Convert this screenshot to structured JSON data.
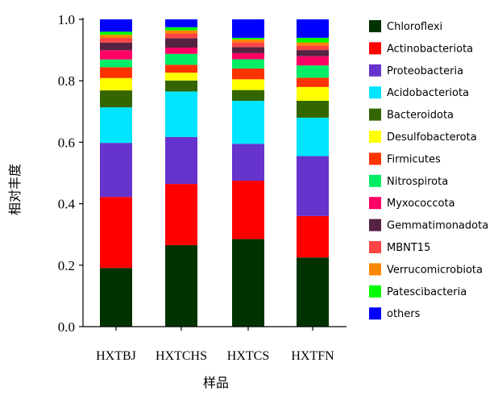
{
  "chart_data": {
    "type": "bar",
    "stacked": true,
    "title": "",
    "xlabel": "样品",
    "ylabel": "相对丰度",
    "ylim": [
      0,
      1.0
    ],
    "yticks": [
      "0.0",
      "0.2",
      "0.4",
      "0.6",
      "0.8",
      "1.0"
    ],
    "grid": false,
    "legend_position": "right",
    "categories": [
      "HXTBJ",
      "HXTCHS",
      "HXTCS",
      "HXTFN"
    ],
    "series": [
      {
        "name": "Chloroflexi",
        "color": "#003300",
        "values": [
          0.19,
          0.26,
          0.285,
          0.225
        ]
      },
      {
        "name": "Actinobacteriota",
        "color": "#ff0000",
        "values": [
          0.23,
          0.195,
          0.19,
          0.135
        ]
      },
      {
        "name": "Proteobacteria",
        "color": "#6633cc",
        "values": [
          0.175,
          0.15,
          0.12,
          0.195
        ]
      },
      {
        "name": "Acidobacteriota",
        "color": "#00e5ff",
        "values": [
          0.115,
          0.145,
          0.14,
          0.125
        ]
      },
      {
        "name": "Bacteroidota",
        "color": "#336600",
        "values": [
          0.055,
          0.035,
          0.035,
          0.055
        ]
      },
      {
        "name": "Desulfobacterota",
        "color": "#ffff00",
        "values": [
          0.04,
          0.025,
          0.035,
          0.045
        ]
      },
      {
        "name": "Firmicutes",
        "color": "#ff3300",
        "values": [
          0.035,
          0.025,
          0.035,
          0.03
        ]
      },
      {
        "name": "Nitrospirota",
        "color": "#00ee66",
        "values": [
          0.025,
          0.035,
          0.03,
          0.04
        ]
      },
      {
        "name": "Myxococcota",
        "color": "#ff0066",
        "values": [
          0.03,
          0.02,
          0.02,
          0.03
        ]
      },
      {
        "name": "Gemmatimonadota",
        "color": "#552244",
        "values": [
          0.025,
          0.03,
          0.02,
          0.02
        ]
      },
      {
        "name": "MBNT15",
        "color": "#ff4444",
        "values": [
          0.015,
          0.015,
          0.015,
          0.015
        ]
      },
      {
        "name": "Verrucomicrobiota",
        "color": "#ff8800",
        "values": [
          0.01,
          0.01,
          0.01,
          0.01
        ]
      },
      {
        "name": "Patescibacteria",
        "color": "#00ff00",
        "values": [
          0.01,
          0.01,
          0.005,
          0.015
        ]
      },
      {
        "name": "others",
        "color": "#0000ff",
        "values": [
          0.04,
          0.025,
          0.06,
          0.06
        ]
      }
    ]
  }
}
